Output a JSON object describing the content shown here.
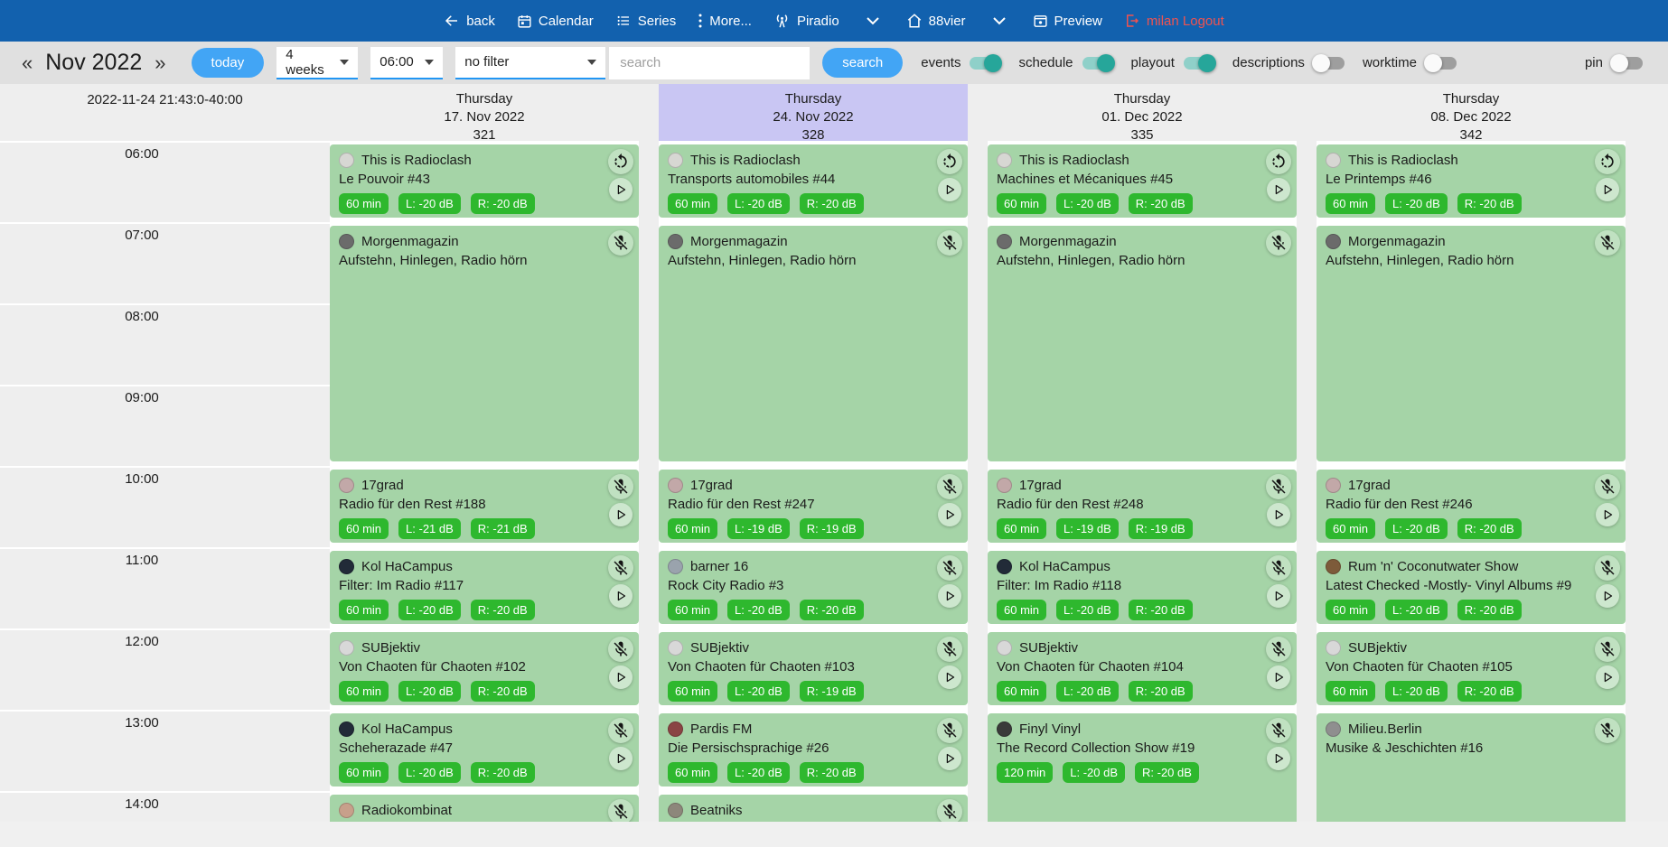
{
  "colors": {
    "navbar_blue": "#1261ae",
    "accent_blue": "#42a5f5",
    "select_underline_blue": "#2196f3",
    "highlight_purple": "#c9c6f3",
    "card_green": "#a5d4a7",
    "badge_green": "#2eb82e",
    "toggle_teal": "#26a69a",
    "logout_red": "#ef5350"
  },
  "nav": {
    "back": "back",
    "calendar": "Calendar",
    "series": "Series",
    "more": "More...",
    "station": "Piradio",
    "channel": "88vier",
    "preview": "Preview",
    "logout": "milan Logout"
  },
  "toolbar": {
    "prev": "«",
    "month": "Nov 2022",
    "next": "»",
    "today": "today",
    "range_select": "4 weeks",
    "time_select": "06:00",
    "filter_select": "no filter",
    "search_placeholder": "search",
    "search_button": "search",
    "toggles": [
      {
        "label": "events",
        "on": true
      },
      {
        "label": "schedule",
        "on": true
      },
      {
        "label": "playout",
        "on": true
      },
      {
        "label": "descriptions",
        "on": false
      },
      {
        "label": "worktime",
        "on": false
      }
    ],
    "pin_toggle": {
      "label": "pin",
      "on": false
    }
  },
  "calendar": {
    "timestamp": "2022-11-24 21:43:0-40:00",
    "times": [
      "06:00",
      "07:00",
      "08:00",
      "09:00",
      "10:00",
      "11:00",
      "12:00",
      "13:00",
      "14:00"
    ],
    "columns": [
      {
        "day": "Thursday",
        "date": "17. Nov 2022",
        "number": "321",
        "highlight": false,
        "events": [
          {
            "title": "This is Radioclash",
            "subtitle": "Le Pouvoir #43",
            "badges": [
              "60 min",
              "L: -20 dB",
              "R: -20 dB"
            ],
            "row": 0,
            "hours": 1,
            "corner_icon": "repeat-icon",
            "play": true,
            "avatar_color": "#d7d7d3"
          },
          {
            "title": "Morgenmagazin",
            "subtitle": "Aufstehn, Hinlegen, Radio hörn",
            "badges": [],
            "row": 1,
            "hours": 3,
            "corner_icon": "mic-off-icon",
            "play": false,
            "avatar_color": "#6b6b6b"
          },
          {
            "title": "17grad",
            "subtitle": "Radio für den Rest #188",
            "badges": [
              "60 min",
              "L: -21 dB",
              "R: -21 dB"
            ],
            "row": 4,
            "hours": 1,
            "corner_icon": "mic-off-icon",
            "play": true,
            "avatar_color": "#c2a8a8"
          },
          {
            "title": "Kol HaCampus",
            "subtitle": "Filter: Im Radio #117",
            "badges": [
              "60 min",
              "L: -20 dB",
              "R: -20 dB"
            ],
            "row": 5,
            "hours": 1,
            "corner_icon": "mic-off-icon",
            "play": true,
            "avatar_color": "#222b38"
          },
          {
            "title": "SUBjektiv",
            "subtitle": "Von Chaoten für Chaoten #102",
            "badges": [
              "60 min",
              "L: -20 dB",
              "R: -20 dB"
            ],
            "row": 6,
            "hours": 1,
            "corner_icon": "mic-off-icon",
            "play": true,
            "avatar_color": "#d8d8d8"
          },
          {
            "title": "Kol HaCampus",
            "subtitle": "Scheherazade #47",
            "badges": [
              "60 min",
              "L: -20 dB",
              "R: -20 dB"
            ],
            "row": 7,
            "hours": 1,
            "corner_icon": "mic-off-icon",
            "play": true,
            "avatar_color": "#222b38"
          },
          {
            "title": "Radiokombinat",
            "subtitle": "",
            "badges": [],
            "row": 8,
            "hours": 1,
            "corner_icon": "mic-off-icon",
            "play": false,
            "avatar_color": "#c7a08b"
          }
        ]
      },
      {
        "day": "Thursday",
        "date": "24. Nov 2022",
        "number": "328",
        "highlight": true,
        "events": [
          {
            "title": "This is Radioclash",
            "subtitle": "Transports automobiles #44",
            "badges": [
              "60 min",
              "L: -20 dB",
              "R: -20 dB"
            ],
            "row": 0,
            "hours": 1,
            "corner_icon": "repeat-icon",
            "play": true,
            "avatar_color": "#d7d7d3"
          },
          {
            "title": "Morgenmagazin",
            "subtitle": "Aufstehn, Hinlegen, Radio hörn",
            "badges": [],
            "row": 1,
            "hours": 3,
            "corner_icon": "mic-off-icon",
            "play": false,
            "avatar_color": "#6b6b6b"
          },
          {
            "title": "17grad",
            "subtitle": "Radio für den Rest #247",
            "badges": [
              "60 min",
              "L: -19 dB",
              "R: -19 dB"
            ],
            "row": 4,
            "hours": 1,
            "corner_icon": "mic-off-icon",
            "play": true,
            "avatar_color": "#c2a8a8"
          },
          {
            "title": "barner 16",
            "subtitle": "Rock City Radio #3",
            "badges": [
              "60 min",
              "L: -20 dB",
              "R: -20 dB"
            ],
            "row": 5,
            "hours": 1,
            "corner_icon": "mic-off-icon",
            "play": true,
            "avatar_color": "#9aa3ad"
          },
          {
            "title": "SUBjektiv",
            "subtitle": "Von Chaoten für Chaoten #103",
            "badges": [
              "60 min",
              "L: -20 dB",
              "R: -19 dB"
            ],
            "row": 6,
            "hours": 1,
            "corner_icon": "mic-off-icon",
            "play": true,
            "avatar_color": "#d8d8d8"
          },
          {
            "title": "Pardis FM",
            "subtitle": "Die Persischsprachige #26",
            "badges": [
              "60 min",
              "L: -20 dB",
              "R: -20 dB"
            ],
            "row": 7,
            "hours": 1,
            "corner_icon": "mic-off-icon",
            "play": true,
            "avatar_color": "#8a4444"
          },
          {
            "title": "Beatniks",
            "subtitle": "",
            "badges": [],
            "row": 8,
            "hours": 1,
            "corner_icon": "mic-off-icon",
            "play": false,
            "avatar_color": "#8d877b"
          }
        ]
      },
      {
        "day": "Thursday",
        "date": "01. Dec 2022",
        "number": "335",
        "highlight": false,
        "events": [
          {
            "title": "This is Radioclash",
            "subtitle": "Machines et Mécaniques #45",
            "badges": [
              "60 min",
              "L: -20 dB",
              "R: -20 dB"
            ],
            "row": 0,
            "hours": 1,
            "corner_icon": "repeat-icon",
            "play": true,
            "avatar_color": "#d7d7d3"
          },
          {
            "title": "Morgenmagazin",
            "subtitle": "Aufstehn, Hinlegen, Radio hörn",
            "badges": [],
            "row": 1,
            "hours": 3,
            "corner_icon": "mic-off-icon",
            "play": false,
            "avatar_color": "#6b6b6b"
          },
          {
            "title": "17grad",
            "subtitle": "Radio für den Rest #248",
            "badges": [
              "60 min",
              "L: -19 dB",
              "R: -19 dB"
            ],
            "row": 4,
            "hours": 1,
            "corner_icon": "mic-off-icon",
            "play": true,
            "avatar_color": "#c2a8a8"
          },
          {
            "title": "Kol HaCampus",
            "subtitle": "Filter: Im Radio #118",
            "badges": [
              "60 min",
              "L: -20 dB",
              "R: -20 dB"
            ],
            "row": 5,
            "hours": 1,
            "corner_icon": "mic-off-icon",
            "play": true,
            "avatar_color": "#222b38"
          },
          {
            "title": "SUBjektiv",
            "subtitle": "Von Chaoten für Chaoten #104",
            "badges": [
              "60 min",
              "L: -20 dB",
              "R: -20 dB"
            ],
            "row": 6,
            "hours": 1,
            "corner_icon": "mic-off-icon",
            "play": true,
            "avatar_color": "#d8d8d8"
          },
          {
            "title": "Finyl Vinyl",
            "subtitle": "The Record Collection Show #19",
            "badges": [
              "120 min",
              "L: -20 dB",
              "R: -20 dB"
            ],
            "row": 7,
            "hours": 2,
            "corner_icon": "mic-off-icon",
            "play": true,
            "avatar_color": "#3a3a3a"
          }
        ]
      },
      {
        "day": "Thursday",
        "date": "08. Dec 2022",
        "number": "342",
        "highlight": false,
        "events": [
          {
            "title": "This is Radioclash",
            "subtitle": "Le Printemps #46",
            "badges": [
              "60 min",
              "L: -20 dB",
              "R: -20 dB"
            ],
            "row": 0,
            "hours": 1,
            "corner_icon": "repeat-icon",
            "play": true,
            "avatar_color": "#d7d7d3"
          },
          {
            "title": "Morgenmagazin",
            "subtitle": "Aufstehn, Hinlegen, Radio hörn",
            "badges": [],
            "row": 1,
            "hours": 3,
            "corner_icon": "mic-off-icon",
            "play": false,
            "avatar_color": "#6b6b6b"
          },
          {
            "title": "17grad",
            "subtitle": "Radio für den Rest #246",
            "badges": [
              "60 min",
              "L: -20 dB",
              "R: -20 dB"
            ],
            "row": 4,
            "hours": 1,
            "corner_icon": "mic-off-icon",
            "play": true,
            "avatar_color": "#c2a8a8"
          },
          {
            "title": "Rum 'n' Coconutwater Show",
            "subtitle": "Latest Checked -Mostly- Vinyl Albums #9",
            "badges": [
              "60 min",
              "L: -20 dB",
              "R: -20 dB"
            ],
            "row": 5,
            "hours": 1,
            "corner_icon": "mic-off-icon",
            "play": true,
            "avatar_color": "#7d5b3a"
          },
          {
            "title": "SUBjektiv",
            "subtitle": "Von Chaoten für Chaoten #105",
            "badges": [
              "60 min",
              "L: -20 dB",
              "R: -20 dB"
            ],
            "row": 6,
            "hours": 1,
            "corner_icon": "mic-off-icon",
            "play": true,
            "avatar_color": "#d8d8d8"
          },
          {
            "title": "Milieu.Berlin",
            "subtitle": "Musike & Jeschichten #16",
            "badges": [],
            "row": 7,
            "hours": 2,
            "corner_icon": "mic-off-icon",
            "play": false,
            "avatar_color": "#8f8f8f"
          }
        ]
      }
    ]
  }
}
